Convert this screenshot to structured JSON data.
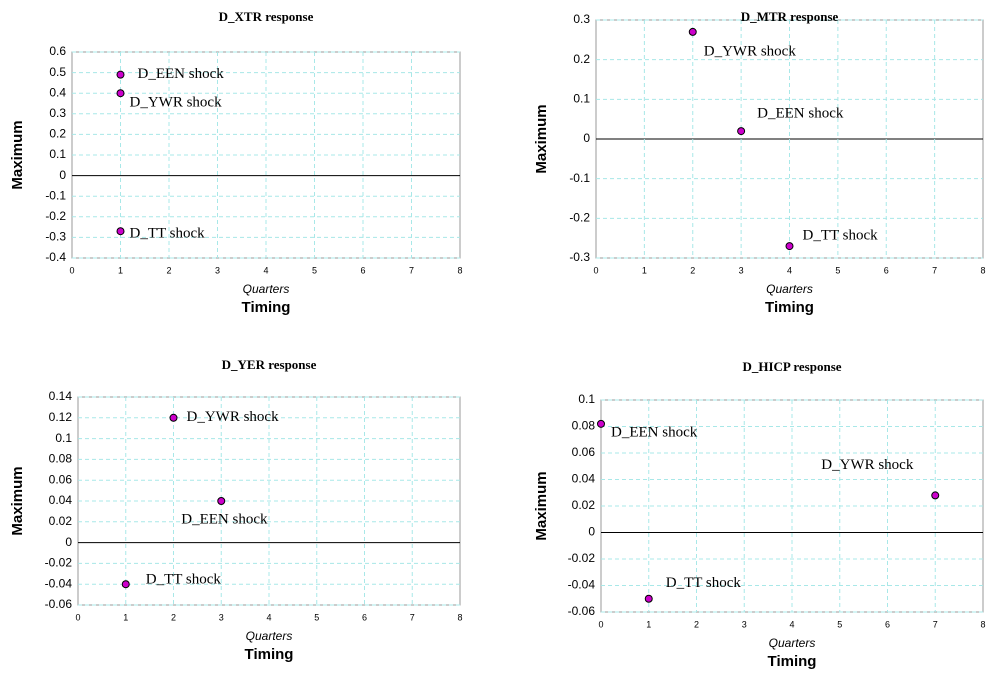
{
  "chart_data": [
    {
      "type": "scatter",
      "title": "D_XTR response",
      "x_sublabel": "Quarters",
      "x_label": "Timing",
      "y_label": "Maximum",
      "x": [
        1,
        1,
        1
      ],
      "values": [
        0.49,
        0.4,
        -0.27
      ],
      "labels": [
        "D_EEN shock",
        "D_YWR shock",
        "D_TT shock"
      ],
      "color": "#cc00cc",
      "xlim": [
        0,
        8
      ],
      "xticks": [
        0,
        1,
        2,
        3,
        4,
        5,
        6,
        7,
        8
      ],
      "ylim": [
        -0.4,
        0.6
      ],
      "yticks": [
        -0.4,
        -0.3,
        -0.2,
        -0.1,
        0,
        0.1,
        0.2,
        0.3,
        0.4,
        0.5,
        0.6
      ],
      "grid": true
    },
    {
      "type": "scatter",
      "title": "D_MTR response",
      "x_sublabel": "Quarters",
      "x_label": "Timing",
      "y_label": "Maximum",
      "x": [
        2,
        3,
        4
      ],
      "values": [
        0.27,
        0.02,
        -0.27
      ],
      "labels": [
        "D_YWR shock",
        "D_EEN shock",
        "D_TT shock"
      ],
      "color": "#cc00cc",
      "xlim": [
        0,
        8
      ],
      "xticks": [
        0,
        1,
        2,
        3,
        4,
        5,
        6,
        7,
        8
      ],
      "ylim": [
        -0.3,
        0.3
      ],
      "yticks": [
        -0.3,
        -0.2,
        -0.1,
        0,
        0.1,
        0.2,
        0.3
      ],
      "grid": true
    },
    {
      "type": "scatter",
      "title": "D_YER response",
      "x_sublabel": "Quarters",
      "x_label": "Timing",
      "y_label": "Maximum",
      "x": [
        2,
        3,
        1
      ],
      "values": [
        0.12,
        0.04,
        -0.04
      ],
      "labels": [
        "D_YWR shock",
        "D_EEN shock",
        "D_TT shock"
      ],
      "color": "#cc00cc",
      "xlim": [
        0,
        8
      ],
      "xticks": [
        0,
        1,
        2,
        3,
        4,
        5,
        6,
        7,
        8
      ],
      "ylim": [
        -0.06,
        0.14
      ],
      "yticks": [
        -0.06,
        -0.04,
        -0.02,
        0,
        0.02,
        0.04,
        0.06,
        0.08,
        0.1,
        0.12,
        0.14
      ],
      "grid": true
    },
    {
      "type": "scatter",
      "title": "D_HICP response",
      "x_sublabel": "Quarters",
      "x_label": "Timing",
      "y_label": "Maximum",
      "x": [
        0,
        7,
        1
      ],
      "values": [
        0.082,
        0.028,
        -0.05
      ],
      "labels": [
        "D_EEN shock",
        "D_YWR shock",
        "D_TT shock"
      ],
      "color": "#cc00cc",
      "xlim": [
        0,
        8
      ],
      "xticks": [
        0,
        1,
        2,
        3,
        4,
        5,
        6,
        7,
        8
      ],
      "ylim": [
        -0.06,
        0.1
      ],
      "yticks": [
        -0.06,
        -0.04,
        -0.02,
        0,
        0.02,
        0.04,
        0.06,
        0.08,
        0.1
      ],
      "grid": true
    }
  ]
}
